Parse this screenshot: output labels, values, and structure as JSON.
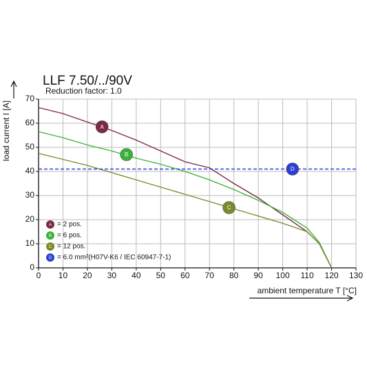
{
  "chart_data": {
    "type": "line",
    "title": "LLF 7.50/../90V",
    "subtitle": "Reduction factor: 1.0",
    "x_label": "ambient temperature T [°C]",
    "y_label": "load current I [A]",
    "xlim": [
      0,
      130
    ],
    "ylim": [
      0,
      70
    ],
    "xticks": [
      0,
      10,
      20,
      30,
      40,
      50,
      60,
      70,
      80,
      90,
      100,
      110,
      120,
      130
    ],
    "yticks": [
      0,
      10,
      20,
      30,
      40,
      50,
      60,
      70
    ],
    "grid": true,
    "legend": "lower left",
    "series": [
      {
        "key": "A",
        "name": "= 2 pos.",
        "color": "#7b2a45",
        "x": [
          0,
          10,
          20,
          30,
          40,
          50,
          60,
          70,
          80,
          90,
          100,
          110,
          115,
          120
        ],
        "values": [
          66.5,
          64,
          60.5,
          57,
          53,
          48.5,
          44,
          41.5,
          35,
          29,
          22,
          15,
          10,
          0
        ],
        "marker": {
          "x": 26,
          "y": 58.5
        }
      },
      {
        "key": "B",
        "name": "= 6 pos.",
        "color": "#3cb13a",
        "x": [
          0,
          10,
          20,
          30,
          40,
          50,
          60,
          70,
          80,
          90,
          100,
          110,
          115,
          120
        ],
        "values": [
          56.5,
          54,
          51,
          48.5,
          45.5,
          43,
          40,
          36.5,
          32.5,
          28,
          23,
          16.5,
          10.5,
          0
        ],
        "marker": {
          "x": 36,
          "y": 47
        }
      },
      {
        "key": "C",
        "name": "= 12 pos.",
        "color": "#7a8a2a",
        "x": [
          0,
          10,
          20,
          30,
          40,
          50,
          60,
          70,
          80,
          90,
          100,
          110,
          115,
          120
        ],
        "values": [
          47.5,
          45,
          42.5,
          39.5,
          36.5,
          33.5,
          30.5,
          27.5,
          24.5,
          21.5,
          18.5,
          15,
          10,
          0
        ],
        "marker": {
          "x": 78,
          "y": 25
        }
      },
      {
        "key": "D",
        "name": "= 6.0 mm²(H07V-K6 / IEC 60947-7-1)",
        "color": "#2c3ed6",
        "dashed": true,
        "x": [
          0,
          130
        ],
        "values": [
          41,
          41
        ],
        "marker": {
          "x": 104,
          "y": 41
        }
      }
    ]
  }
}
